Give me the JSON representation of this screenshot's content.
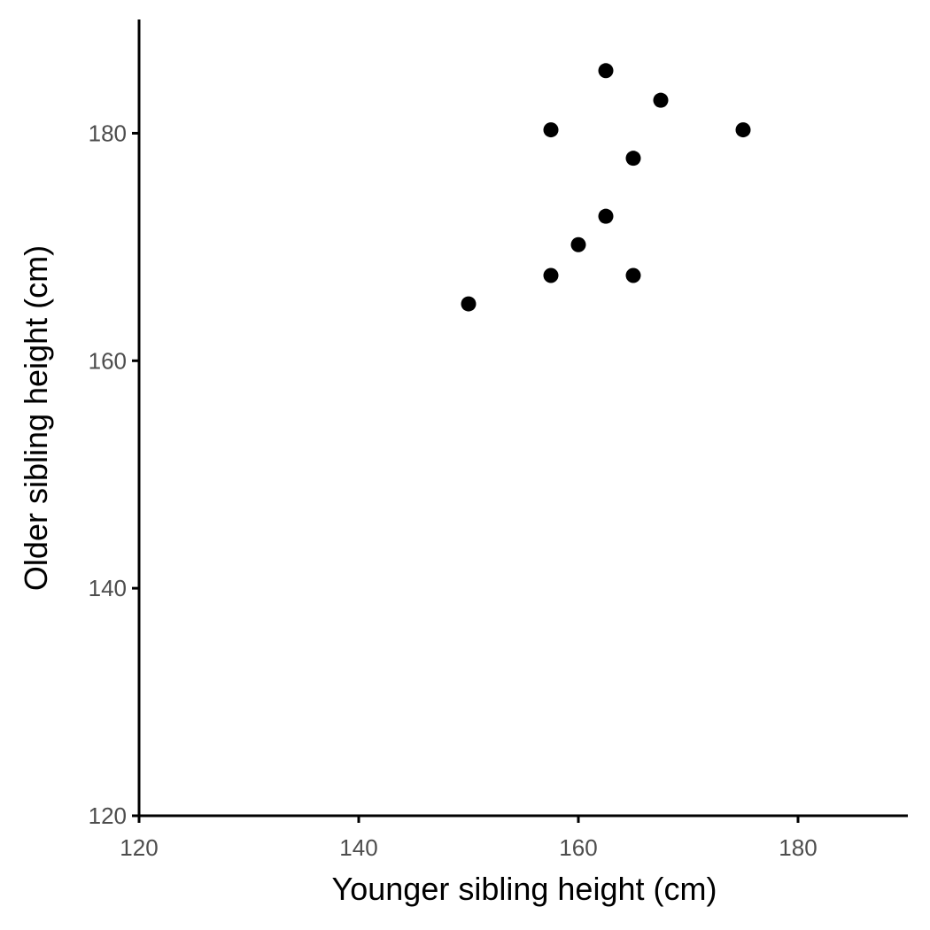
{
  "chart_data": {
    "type": "scatter",
    "title": "",
    "xlabel": "Younger sibling height (cm)",
    "ylabel": "Older sibling height (cm)",
    "xlim": [
      120,
      190
    ],
    "ylim": [
      120,
      190
    ],
    "x_ticks": [
      120,
      140,
      160,
      180
    ],
    "y_ticks": [
      120,
      140,
      160,
      180
    ],
    "x_tick_labels": [
      "120",
      "140",
      "160",
      "180"
    ],
    "y_tick_labels": [
      "120",
      "140",
      "160",
      "180"
    ],
    "grid": false,
    "legend": "none",
    "point_color": "#000000",
    "axis_color": "#000000",
    "series": [
      {
        "x": [
          150.0,
          157.5,
          157.5,
          160.0,
          162.5,
          162.5,
          165.0,
          165.0,
          167.5,
          175.0
        ],
        "y": [
          165.0,
          167.5,
          180.3,
          170.2,
          172.7,
          185.5,
          167.5,
          177.8,
          182.9,
          180.3
        ]
      }
    ]
  }
}
